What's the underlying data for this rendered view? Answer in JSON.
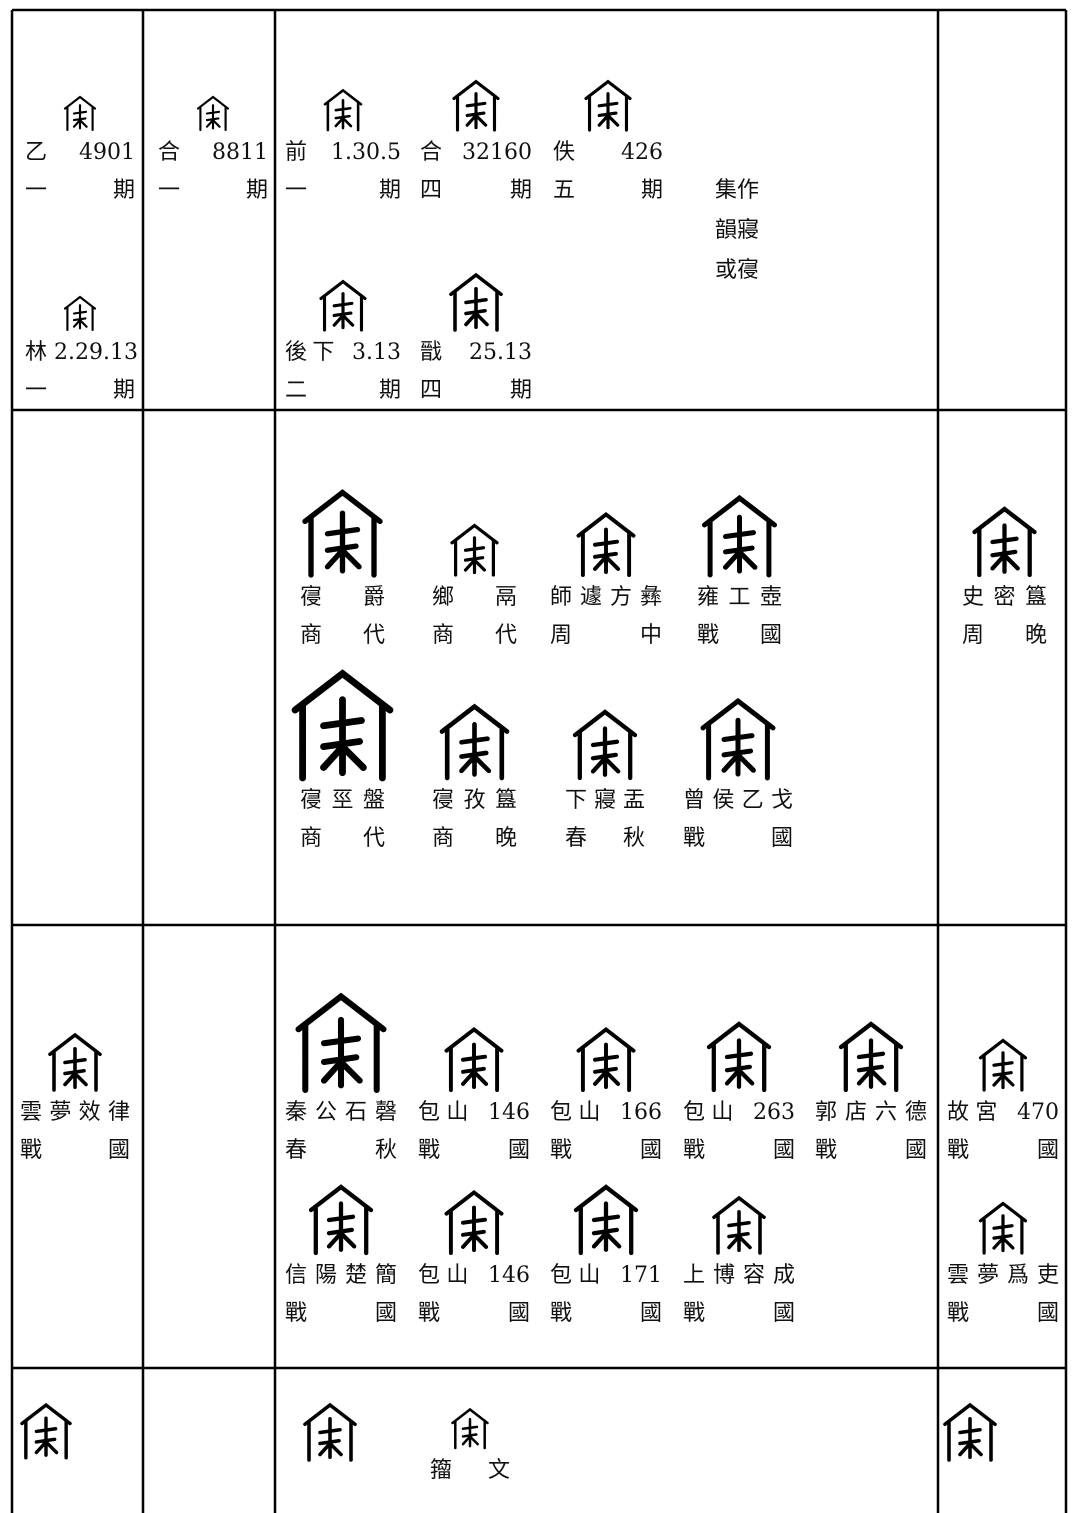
{
  "entries": [
    {
      "source": "乙 4901",
      "period": "一期"
    },
    {
      "source": "林 2.29.13",
      "period": "一期"
    },
    {
      "source": "合 8811",
      "period": "一期"
    },
    {
      "source": "前 1.30.5",
      "period": "一期"
    },
    {
      "source": "合 32160",
      "period": "四期"
    },
    {
      "source": "佚 426",
      "period": "五期"
    },
    {
      "source": "後下 3.13",
      "period": "二期"
    },
    {
      "source": "戩 25.13",
      "period": "四期"
    },
    {
      "source": "寑爵",
      "period": "商代"
    },
    {
      "source": "鄉鬲",
      "period": "商代"
    },
    {
      "source": "師遽方彝",
      "period": "周中"
    },
    {
      "source": "雍工壺",
      "period": "戰國"
    },
    {
      "source": "寑巠盤",
      "period": "商代"
    },
    {
      "source": "寑孜簋",
      "period": "商晚"
    },
    {
      "source": "下寢盂",
      "period": "春秋"
    },
    {
      "source": "曾侯乙戈",
      "period": "戰國"
    },
    {
      "source": "史密簋",
      "period": "周晚"
    },
    {
      "source": "雲夢效律",
      "period": "戰國"
    },
    {
      "source": "秦公石磬",
      "period": "春秋"
    },
    {
      "source": "包山 146",
      "period": "戰國"
    },
    {
      "source": "包山 166",
      "period": "戰國"
    },
    {
      "source": "包山 263",
      "period": "戰國"
    },
    {
      "source": "郭店六德",
      "period": "戰國"
    },
    {
      "source": "故宮 470",
      "period": "戰國"
    },
    {
      "source": "信陽楚簡",
      "period": "戰國"
    },
    {
      "source": "包山 146",
      "period": "戰國"
    },
    {
      "source": "包山 171",
      "period": "戰國"
    },
    {
      "source": "上博容成",
      "period": "戰國"
    },
    {
      "source": "雲夢爲吏",
      "period": "戰國"
    },
    {
      "source": "籀文"
    }
  ],
  "note": [
    "集作",
    "韻寢",
    "或寑"
  ]
}
